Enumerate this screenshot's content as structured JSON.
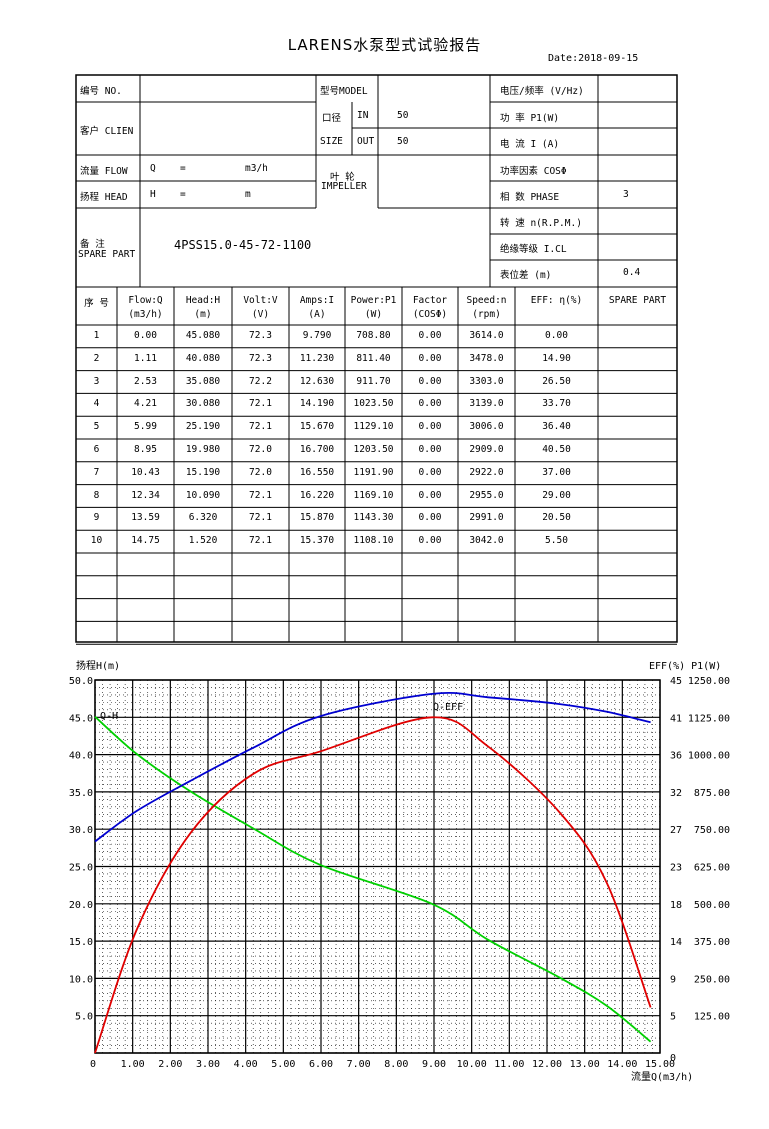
{
  "title": "LARENS水泵型式试验报告",
  "date": "Date:2018-09-15",
  "header": {
    "no_label": "编号  NO.",
    "model_label": "型号MODEL",
    "voltage_label": "电压/频率 (V/Hz)",
    "client_label": "客户 CLIEN",
    "bore_label": "口径",
    "size_label": "SIZE",
    "in_label": "IN",
    "in_value": "50",
    "out_label": "OUT",
    "out_value": "50",
    "power_label": "功  率    P1(W)",
    "current_label": "电  流    I (A)",
    "flow_label": "流量 FLOW",
    "flow_q": "Q",
    "flow_eq": "=",
    "flow_unit": "m3/h",
    "head_label": "扬程 HEAD",
    "head_h": "H",
    "head_eq": "=",
    "head_unit": "m",
    "impeller_cn": "叶  轮",
    "impeller_en": "IMPELLER",
    "pf_label": "功率因素  COSΦ",
    "phase_label": "相  数    PHASE",
    "phase_value": "3",
    "speed_label": "转  速 n(R.P.M.)",
    "remark_cn": "备   注",
    "remark_en": "SPARE PART",
    "remark_value": "4PSS15.0-45-72-1100",
    "insul_label": "绝缘等级   I.CL",
    "meter_label": "表位差 (m)",
    "meter_value": "0.4"
  },
  "columns": [
    [
      "序 号",
      ""
    ],
    [
      "Flow:Q",
      "(m3/h)"
    ],
    [
      "Head:H",
      "(m)"
    ],
    [
      "Volt:V",
      "(V)"
    ],
    [
      "Amps:I",
      "(A)"
    ],
    [
      "Power:P1",
      "(W)"
    ],
    [
      "Factor",
      "(COSΦ)"
    ],
    [
      "Speed:n",
      "(rpm)"
    ],
    [
      "EFF: η(%)",
      ""
    ],
    [
      "SPARE PART",
      ""
    ]
  ],
  "rows": [
    [
      "1",
      "0.00",
      "45.080",
      "72.3",
      "9.790",
      "708.80",
      "0.00",
      "3614.0",
      "0.00"
    ],
    [
      "2",
      "1.11",
      "40.080",
      "72.3",
      "11.230",
      "811.40",
      "0.00",
      "3478.0",
      "14.90"
    ],
    [
      "3",
      "2.53",
      "35.080",
      "72.2",
      "12.630",
      "911.70",
      "0.00",
      "3303.0",
      "26.50"
    ],
    [
      "4",
      "4.21",
      "30.080",
      "72.1",
      "14.190",
      "1023.50",
      "0.00",
      "3139.0",
      "33.70"
    ],
    [
      "5",
      "5.99",
      "25.190",
      "72.1",
      "15.670",
      "1129.10",
      "0.00",
      "3006.0",
      "36.40"
    ],
    [
      "6",
      "8.95",
      "19.980",
      "72.0",
      "16.700",
      "1203.50",
      "0.00",
      "2909.0",
      "40.50"
    ],
    [
      "7",
      "10.43",
      "15.190",
      "72.0",
      "16.550",
      "1191.90",
      "0.00",
      "2922.0",
      "37.00"
    ],
    [
      "8",
      "12.34",
      "10.090",
      "72.1",
      "16.220",
      "1169.10",
      "0.00",
      "2955.0",
      "29.00"
    ],
    [
      "9",
      "13.59",
      "6.320",
      "72.1",
      "15.870",
      "1143.30",
      "0.00",
      "2991.0",
      "20.50"
    ],
    [
      "10",
      "14.75",
      "1.520",
      "72.1",
      "15.370",
      "1108.10",
      "0.00",
      "3042.0",
      "5.50"
    ]
  ],
  "chart_data": {
    "type": "line",
    "ylabel_left": "扬程H(m)",
    "ylabel_right": "EFF(%) P1(W)",
    "xlabel": "流量Q(m3/h)",
    "x_ticks": [
      "0",
      "1.00",
      "2.00",
      "3.00",
      "4.00",
      "5.00",
      "6.00",
      "7.00",
      "8.00",
      "9.00",
      "10.00",
      "11.00",
      "12.00",
      "13.00",
      "14.00",
      "15.00"
    ],
    "y_left_ticks": [
      "50.0",
      "45.0",
      "40.0",
      "35.0",
      "30.0",
      "25.0",
      "20.0",
      "15.0",
      "10.0",
      "5.0"
    ],
    "y_eff_ticks": [
      "45",
      "41",
      "36",
      "32",
      "27",
      "23",
      "18",
      "14",
      "9",
      "5",
      "0"
    ],
    "y_p1_ticks": [
      "1250.00",
      "1125.00",
      "1000.00",
      "875.00",
      "750.00",
      "625.00",
      "500.00",
      "375.00",
      "250.00",
      "125.00"
    ],
    "xlim": [
      0,
      15
    ],
    "ylim_head": [
      0,
      50
    ],
    "ylim_eff": [
      0,
      45
    ],
    "ylim_p1": [
      0,
      1250
    ],
    "curve_labels": {
      "head": "Q-H",
      "eff": "Q-EFF"
    },
    "series": [
      {
        "key": "head",
        "color": "#00d000",
        "x": [
          0.0,
          1.11,
          2.53,
          4.21,
          5.99,
          8.95,
          10.43,
          12.34,
          13.59,
          14.75
        ],
        "y": [
          45.08,
          40.08,
          35.08,
          30.08,
          25.19,
          19.98,
          15.19,
          10.09,
          6.32,
          1.52
        ]
      },
      {
        "key": "eff",
        "color": "#e00000",
        "x": [
          0.0,
          1.11,
          2.53,
          4.21,
          5.99,
          8.95,
          10.43,
          12.34,
          13.59,
          14.75
        ],
        "y": [
          0.0,
          14.9,
          26.5,
          33.7,
          36.4,
          40.5,
          37.0,
          29.0,
          20.5,
          5.5
        ]
      },
      {
        "key": "p1",
        "color": "#0000d0",
        "x": [
          0.0,
          1.11,
          2.53,
          4.21,
          5.99,
          8.95,
          10.43,
          12.34,
          13.59,
          14.75
        ],
        "y": [
          708.8,
          811.4,
          911.7,
          1023.5,
          1129.1,
          1203.5,
          1191.9,
          1169.1,
          1143.3,
          1108.1
        ]
      }
    ]
  }
}
